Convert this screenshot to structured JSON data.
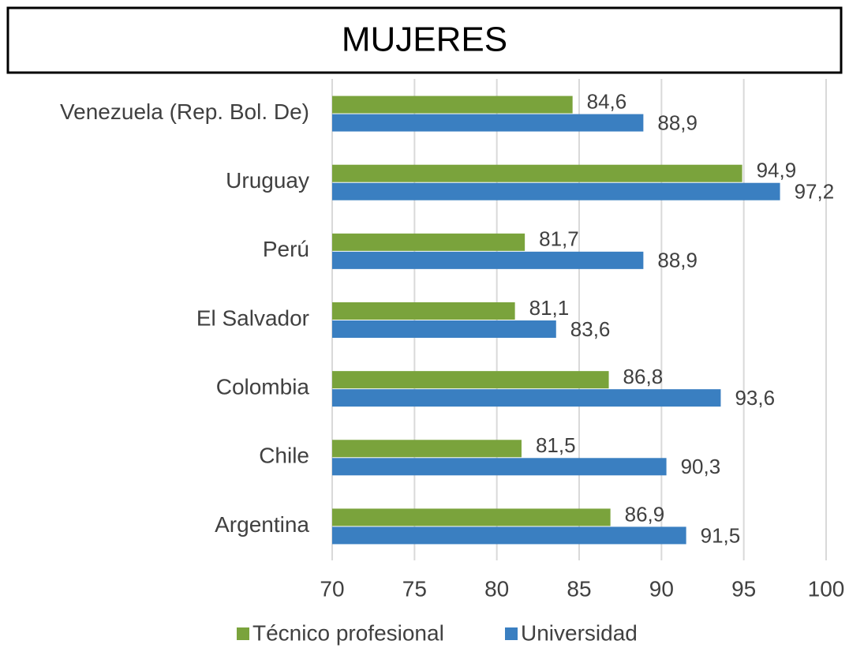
{
  "chart_data": {
    "type": "barh",
    "title": "MUJERES",
    "categories": [
      "Venezuela (Rep. Bol. De)",
      "Uruguay",
      "Perú",
      "El Salvador",
      "Colombia",
      "Chile",
      "Argentina"
    ],
    "series": [
      {
        "name": "Técnico profesional",
        "color": "#7aa33c",
        "values": [
          84.6,
          94.9,
          81.7,
          81.1,
          86.8,
          81.5,
          86.9
        ],
        "value_labels": [
          "84,6",
          "94,9",
          "81,7",
          "81,1",
          "86,8",
          "81,5",
          "86,9"
        ]
      },
      {
        "name": "Universidad",
        "color": "#3a7fc1",
        "values": [
          88.9,
          97.2,
          88.9,
          83.6,
          93.6,
          90.3,
          91.5
        ],
        "value_labels": [
          "88,9",
          "97,2",
          "88,9",
          "83,6",
          "93,6",
          "90,3",
          "91,5"
        ]
      }
    ],
    "xlim": [
      70,
      100
    ],
    "xticks": [
      70,
      75,
      80,
      85,
      90,
      95,
      100
    ],
    "grid": true
  }
}
